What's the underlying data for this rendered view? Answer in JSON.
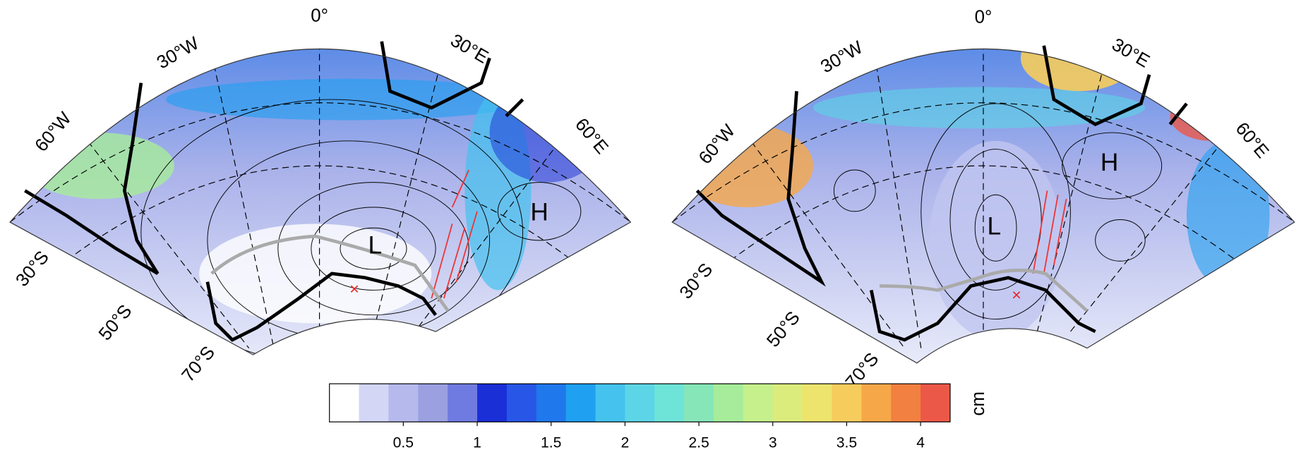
{
  "maps": [
    {
      "longitude_labels": [
        "0°",
        "30°W",
        "30°E",
        "60°W",
        "60°E"
      ],
      "latitude_labels": [
        "30°S",
        "50°S",
        "70°S"
      ],
      "high": "H",
      "low": "L"
    },
    {
      "longitude_labels": [
        "0°",
        "30°W",
        "30°E",
        "60°W",
        "60°E"
      ],
      "latitude_labels": [
        "30°S",
        "50°S",
        "70°S"
      ],
      "high": "H",
      "low": "L"
    }
  ],
  "colorbar": {
    "label": "cm",
    "lim": [
      0,
      4.2
    ],
    "ticks": [
      0.5,
      1,
      1.5,
      2,
      2.5,
      3,
      3.5,
      4
    ],
    "colors": [
      "#ffffff",
      "#d3d6f5",
      "#b5b9ec",
      "#9aa0e0",
      "#6f7be0",
      "#1a2fd6",
      "#2856e6",
      "#1f78ec",
      "#1fa0f0",
      "#45c2ee",
      "#5cd6e6",
      "#6ee4d8",
      "#86e6b8",
      "#a6ec9a",
      "#c6f08c",
      "#dcec7c",
      "#ece46c",
      "#f6cc5c",
      "#f6a848",
      "#f28040",
      "#ec5848"
    ]
  }
}
